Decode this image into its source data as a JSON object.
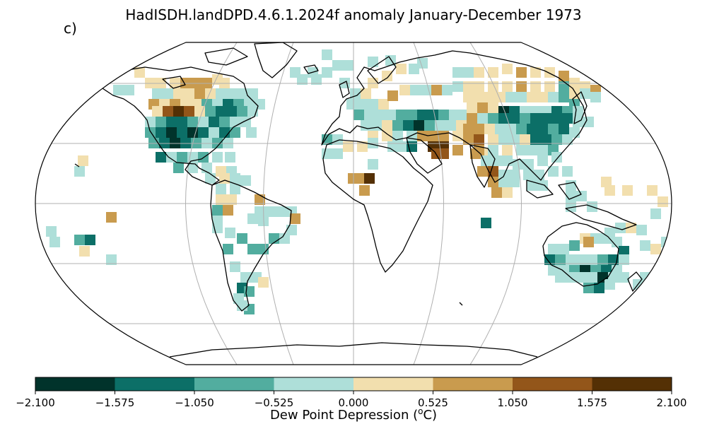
{
  "title": "HadISDH.landDPD.4.6.1.2024f anomaly January-December 1973",
  "panel_label": "c)",
  "colorbar": {
    "label_prefix": "Dew Point Depression (",
    "label_unit_base": "C",
    "label_unit_sup": "o",
    "label_suffix": ")",
    "ticks": [
      "−2.100",
      "−1.575",
      "−1.050",
      "−0.525",
      "0.000",
      "0.525",
      "1.050",
      "1.575",
      "2.100"
    ],
    "colors": [
      "#01332b",
      "#0c6f67",
      "#52ad9f",
      "#aedfd9",
      "#f2dfae",
      "#c99b4e",
      "#93561a",
      "#543005"
    ]
  },
  "map": {
    "projection": "robinson",
    "gridlines": true,
    "coastlines": true
  }
}
